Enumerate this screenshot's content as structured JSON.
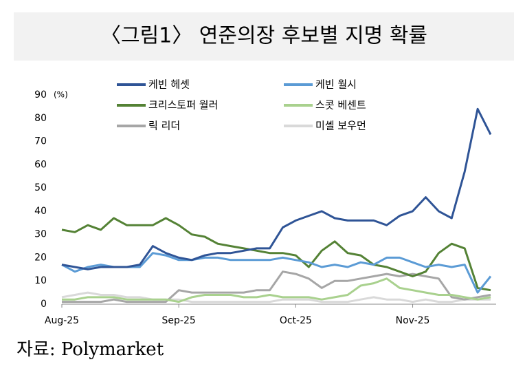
{
  "chart_data": {
    "type": "line",
    "title": "〈그림1〉 연준의장 후보별 지명 확률",
    "unit_label": "(%)",
    "source": "자료: Polymarket",
    "categories": [
      "Aug-25",
      null,
      null,
      null,
      null,
      null,
      null,
      null,
      null,
      "Sep-25",
      null,
      null,
      null,
      null,
      null,
      null,
      null,
      null,
      "Oct-25",
      null,
      null,
      null,
      null,
      null,
      null,
      null,
      null,
      "Nov-25",
      null,
      null,
      null,
      null,
      null,
      null
    ],
    "ylim": [
      0,
      90
    ],
    "yticks": [
      0,
      10,
      20,
      30,
      40,
      50,
      60,
      70,
      80,
      90
    ],
    "grid": false,
    "legend": "top",
    "series": [
      {
        "name": "케빈 헤셋",
        "color": "#2f5496",
        "values": [
          17,
          16,
          15,
          16,
          16,
          16,
          17,
          25,
          22,
          20,
          19,
          21,
          22,
          22,
          23,
          24,
          24,
          33,
          36,
          38,
          40,
          37,
          36,
          36,
          36,
          34,
          38,
          40,
          46,
          40,
          37,
          57,
          84,
          73
        ]
      },
      {
        "name": "케빈 월시",
        "color": "#5b9bd5",
        "values": [
          17,
          14,
          16,
          17,
          16,
          16,
          16,
          22,
          21,
          19,
          19,
          20,
          20,
          19,
          19,
          19,
          19,
          20,
          19,
          18,
          16,
          17,
          16,
          18,
          17,
          20,
          20,
          18,
          16,
          17,
          16,
          17,
          5,
          12
        ]
      },
      {
        "name": "크리스토퍼 월러",
        "color": "#548235",
        "values": [
          32,
          31,
          34,
          32,
          37,
          34,
          34,
          34,
          37,
          34,
          30,
          29,
          26,
          25,
          24,
          23,
          22,
          22,
          21,
          16,
          23,
          27,
          22,
          21,
          17,
          16,
          14,
          12,
          14,
          22,
          26,
          24,
          7,
          6
        ]
      },
      {
        "name": "스콧 베센트",
        "color": "#a9d18e",
        "values": [
          2,
          2,
          3,
          3,
          3,
          2,
          2,
          2,
          2,
          1,
          3,
          4,
          4,
          4,
          3,
          3,
          4,
          3,
          3,
          3,
          2,
          3,
          4,
          8,
          9,
          11,
          7,
          6,
          5,
          4,
          4,
          3,
          2,
          3
        ]
      },
      {
        "name": "릭 리더",
        "color": "#a6a6a6",
        "values": [
          1,
          1,
          1,
          1,
          2,
          1,
          1,
          1,
          1,
          6,
          5,
          5,
          5,
          5,
          5,
          6,
          6,
          14,
          13,
          11,
          7,
          10,
          10,
          11,
          12,
          13,
          12,
          13,
          12,
          11,
          3,
          2,
          3,
          4
        ]
      },
      {
        "name": "미셸 보우먼",
        "color": "#d9d9d9",
        "values": [
          3,
          4,
          5,
          4,
          4,
          3,
          3,
          2,
          2,
          2,
          1,
          1,
          1,
          1,
          1,
          1,
          1,
          2,
          2,
          2,
          1,
          1,
          1,
          2,
          3,
          2,
          2,
          1,
          2,
          1,
          1,
          2,
          2,
          2
        ]
      }
    ]
  }
}
